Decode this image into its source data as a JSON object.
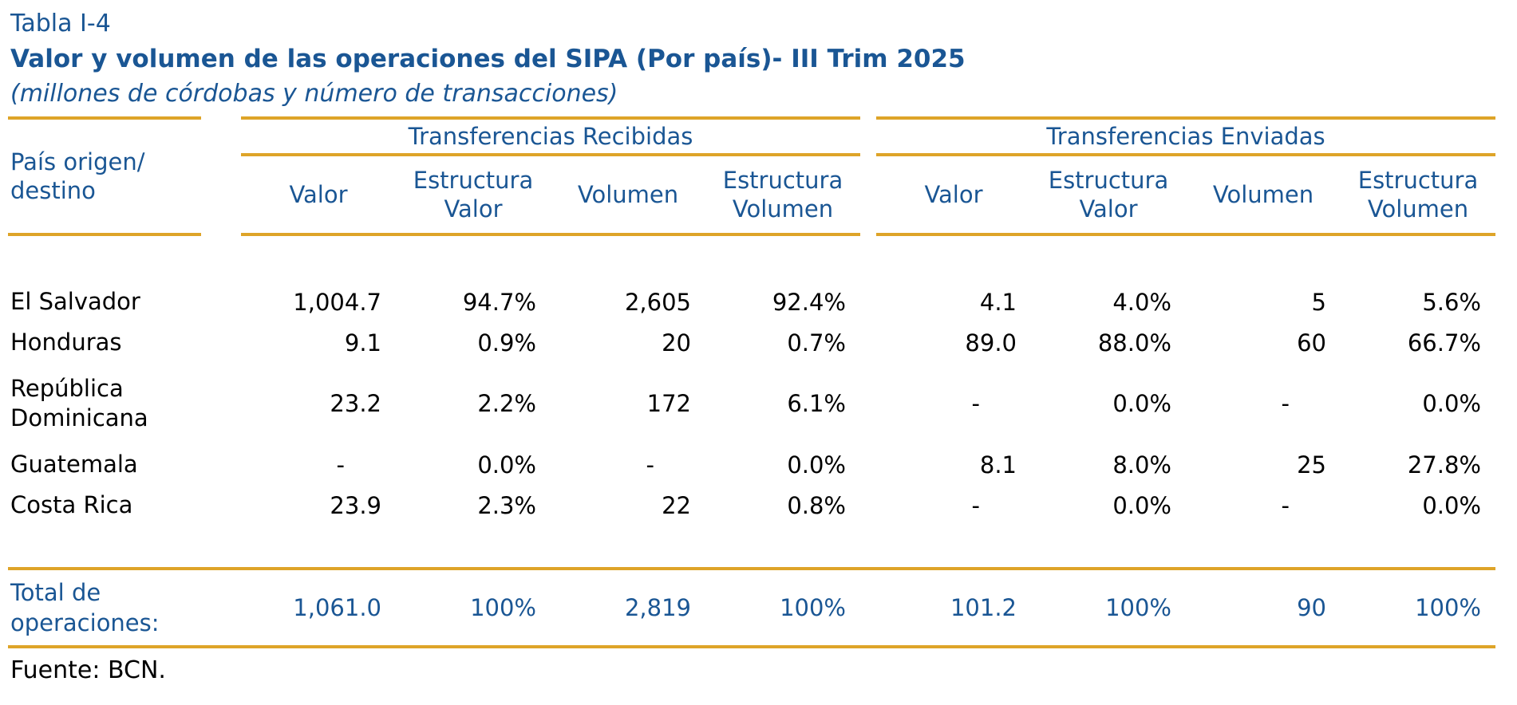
{
  "header": {
    "table_label": "Tabla I-4",
    "title": "Valor y volumen de las operaciones del SIPA (Por país)- III Trim 2025",
    "subtitle": "(millones de córdobas y número de transacciones)"
  },
  "table": {
    "row_header": {
      "line1": "País origen/",
      "line2": "destino"
    },
    "groups": [
      {
        "label": "Transferencias Recibidas",
        "columns": [
          "Valor",
          "Estructura Valor",
          "Volumen",
          "Estructura Volumen"
        ]
      },
      {
        "label": "Transferencias Enviadas",
        "columns": [
          "Valor",
          "Estructura Valor",
          "Volumen",
          "Estructura Volumen"
        ]
      }
    ],
    "rows": [
      {
        "country": "El Salvador",
        "cells": [
          "1,004.7",
          "94.7%",
          "2,605",
          "92.4%",
          "4.1",
          "4.0%",
          "5",
          "5.6%"
        ]
      },
      {
        "country": "Honduras",
        "cells": [
          "9.1",
          "0.9%",
          "20",
          "0.7%",
          "89.0",
          "88.0%",
          "60",
          "66.7%"
        ]
      },
      {
        "country": "República Dominicana",
        "cells": [
          "23.2",
          "2.2%",
          "172",
          "6.1%",
          "-",
          "0.0%",
          "-",
          "0.0%"
        ]
      },
      {
        "country": "Guatemala",
        "cells": [
          "-",
          "0.0%",
          "-",
          "0.0%",
          "8.1",
          "8.0%",
          "25",
          "27.8%"
        ]
      },
      {
        "country": "Costa Rica",
        "cells": [
          "23.9",
          "2.3%",
          "22",
          "0.8%",
          "-",
          "0.0%",
          "-",
          "0.0%"
        ]
      }
    ],
    "total": {
      "label": "Total de operaciones:",
      "cells": [
        "1,061.0",
        "100%",
        "2,819",
        "100%",
        "101.2",
        "100%",
        "90",
        "100%"
      ]
    }
  },
  "footer": {
    "source": "Fuente: BCN."
  },
  "colors": {
    "accent_blue": "#1A5694",
    "accent_gold": "#DEA428",
    "data_text": "#000000",
    "background": "#FFFFFF"
  }
}
